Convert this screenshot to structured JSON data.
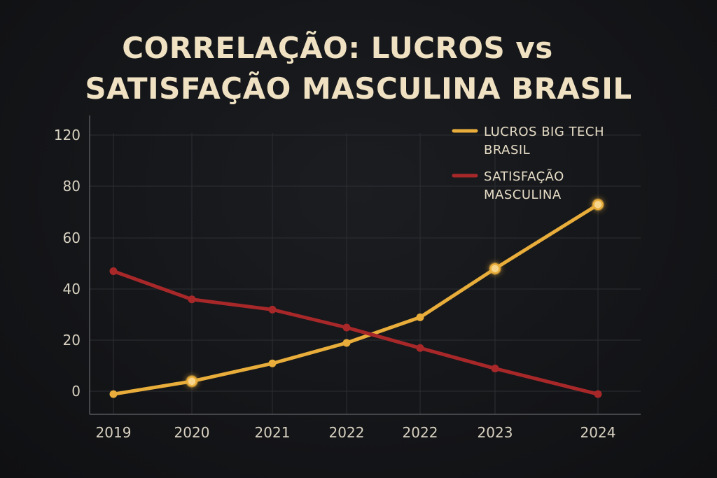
{
  "title": {
    "line1": "CORRELAÇÃO: LUCROS vs",
    "line2": "SATISFAÇÃO MASCULINA BRASIL"
  },
  "colors": {
    "background": "#141518",
    "title": "#efe1c2",
    "lucros": "#e8ad3a",
    "satisfacao": "#a8282a",
    "grid": "#2c2e33",
    "axis": "#55575c"
  },
  "chart_data": {
    "type": "line",
    "title": "CORRELAÇÃO: LUCROS vs SATISFAÇÃO MASCULINA BRASIL",
    "xlabel": "",
    "ylabel": "",
    "categories": [
      "2019",
      "2020",
      "2021",
      "2022",
      "2022",
      "2023",
      "2024"
    ],
    "yticks": [
      "0",
      "20",
      "40",
      "60",
      "80",
      "120"
    ],
    "series": [
      {
        "name": "LUCROS BIG TECH BRASIL",
        "legend_lines": [
          "LUCROS BIG TECH",
          "BRASIL"
        ],
        "color": "#e8ad3a",
        "values": [
          -1,
          4,
          11,
          19,
          29,
          48,
          73
        ],
        "highlighted": [
          false,
          true,
          false,
          false,
          false,
          true,
          true
        ]
      },
      {
        "name": "SATISFAÇÃO MASCULINA",
        "legend_lines": [
          "SATISFAÇÃO",
          "MASCULINA"
        ],
        "color": "#a8282a",
        "values": [
          47,
          36,
          32,
          25,
          17,
          9,
          -1
        ],
        "highlighted": [
          false,
          false,
          false,
          false,
          false,
          false,
          false
        ]
      }
    ],
    "grid": true,
    "legend_position": "top-right"
  }
}
